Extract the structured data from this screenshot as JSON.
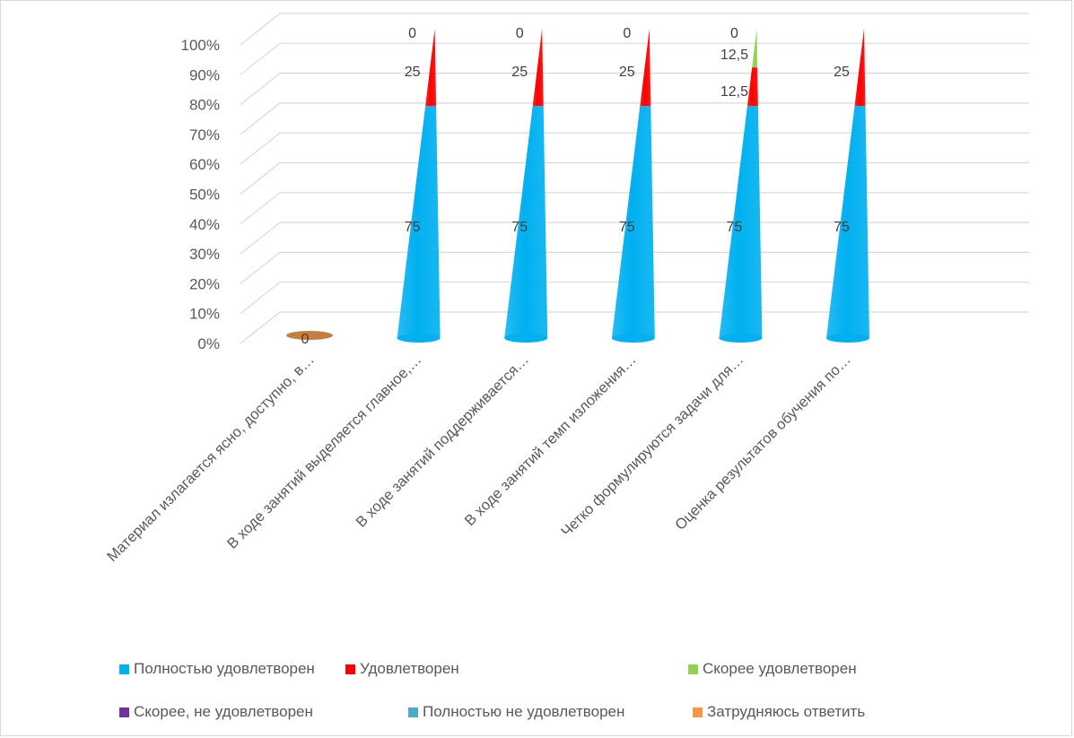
{
  "chart_data": {
    "type": "bar",
    "bar_shape": "cone",
    "stacked": "percent",
    "categories": [
      "Материал излагается ясно, доступно, в…",
      "В ходе занятий выделяется главное,…",
      "В ходе занятий поддерживается…",
      "В ходе занятий темп изложения…",
      "Четко формулируются задачи для…",
      "Оценка результатов обучения по…"
    ],
    "series": [
      {
        "name": "Полностью удовлетворен",
        "color": "#00b0f0",
        "values": [
          0,
          75,
          75,
          75,
          75,
          75
        ],
        "labels": [
          "",
          "75",
          "75",
          "75",
          "75",
          "75"
        ]
      },
      {
        "name": "Удовлетворен",
        "color": "#ff0000",
        "values": [
          0,
          25,
          25,
          25,
          12.5,
          25
        ],
        "labels": [
          "",
          "25",
          "25",
          "25",
          "12,5",
          "25"
        ]
      },
      {
        "name": "Скорее удовлетворен",
        "color": "#92d050",
        "values": [
          0,
          0,
          0,
          0,
          12.5,
          0
        ],
        "labels": [
          "",
          "0",
          "0",
          "0",
          "12,5",
          ""
        ]
      },
      {
        "name": "Скорее, не удовлетворен",
        "color": "#7030a0",
        "values": [
          0,
          0,
          0,
          0,
          0,
          0
        ],
        "labels": [
          "",
          "",
          "",
          "",
          "0",
          ""
        ]
      },
      {
        "name": "Полностью не удовлетворен",
        "color": "#4bacc6",
        "values": [
          0,
          0,
          0,
          0,
          0,
          0
        ],
        "labels": [
          "",
          "",
          "",
          "",
          "",
          ""
        ]
      },
      {
        "name": "Затрудняюсь ответить",
        "color": "#f79646",
        "values": [
          0,
          0,
          0,
          0,
          0,
          0
        ],
        "labels": [
          "0",
          "",
          "",
          "",
          "",
          ""
        ]
      }
    ],
    "yticks": [
      "0%",
      "10%",
      "20%",
      "30%",
      "40%",
      "50%",
      "60%",
      "70%",
      "80%",
      "90%",
      "100%"
    ],
    "ylim": [
      0,
      100
    ],
    "grid": true,
    "legend_position": "bottom"
  }
}
